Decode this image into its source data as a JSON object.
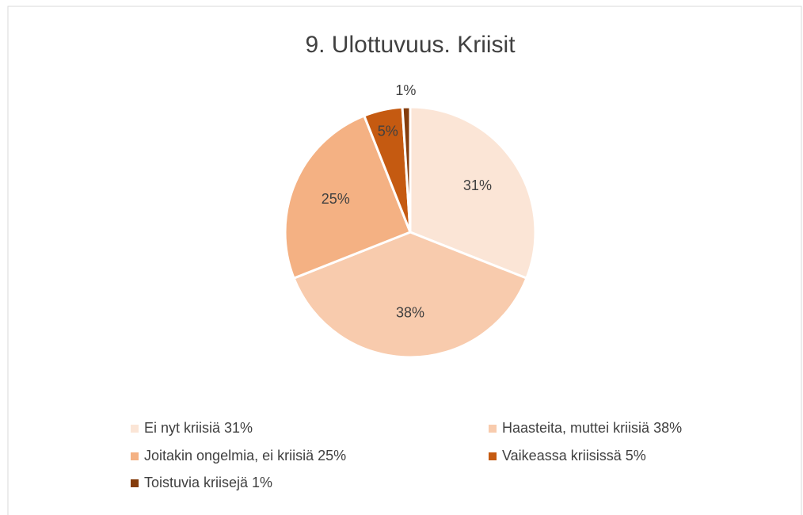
{
  "chart_data": {
    "type": "pie",
    "title": "9. Ulottuvuus. Kriisit",
    "categories": [
      "Ei nyt kriisiä 31%",
      "Haasteita, muttei kriisiä 38%",
      "Joitakin ongelmia, ei kriisiä 25%",
      "Vaikeassa kriisissä 5%",
      "Toistuvia kriisejä 1%"
    ],
    "values": [
      31,
      38,
      25,
      5,
      1
    ],
    "value_labels": [
      "31%",
      "38%",
      "25%",
      "5%",
      "1%"
    ],
    "colors": [
      "#fbe5d6",
      "#f8cbad",
      "#f4b183",
      "#c55a11",
      "#843c0c"
    ],
    "legend": "bottom"
  }
}
